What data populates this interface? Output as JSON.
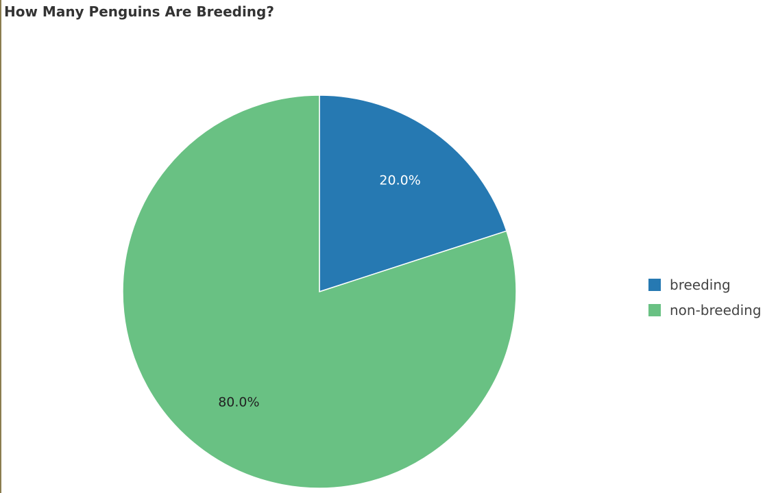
{
  "chart_data": {
    "type": "pie",
    "title": "How Many Penguins Are Breeding?",
    "categories": [
      "breeding",
      "non-breeding"
    ],
    "values": [
      20.0,
      80.0
    ],
    "labels": [
      "20.0%",
      "80.0%"
    ],
    "colors": [
      "#2679b2",
      "#69c183"
    ],
    "label_colors": [
      "#ffffff",
      "#222222"
    ],
    "start_angle_deg": 0,
    "direction": "clockwise",
    "legend_position": "right"
  }
}
